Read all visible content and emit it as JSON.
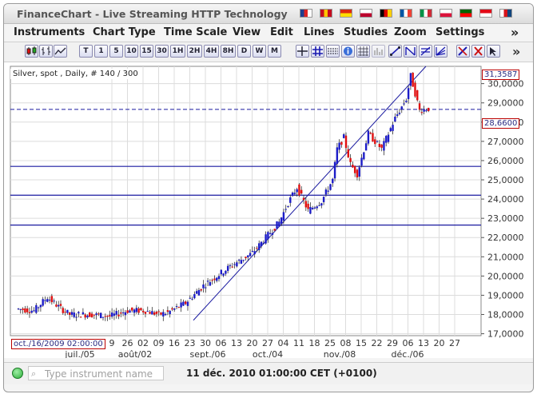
{
  "window": {
    "title": "FinanceChart - Live Streaming HTTP Technology"
  },
  "flags": [
    {
      "name": "uk-flag",
      "colors": [
        "#1f3d8f",
        "#d22",
        "#ffffff"
      ]
    },
    {
      "name": "spain-flag",
      "colors": [
        "#c60b1e",
        "#ffc400",
        "#c60b1e"
      ]
    },
    {
      "name": "china-flag",
      "colors": [
        "#de2910",
        "#ffde00"
      ]
    },
    {
      "name": "japan-flag",
      "colors": [
        "#ffffff",
        "#bc002d"
      ]
    },
    {
      "name": "germany-flag",
      "colors": [
        "#000000",
        "#dd0000",
        "#ffce00"
      ]
    },
    {
      "name": "france-flag",
      "colors": [
        "#0055a4",
        "#ffffff",
        "#ef4135"
      ]
    },
    {
      "name": "italy-flag",
      "colors": [
        "#009246",
        "#ffffff",
        "#ce2b37"
      ]
    },
    {
      "name": "poland-flag",
      "colors": [
        "#ffffff",
        "#dc143c"
      ]
    },
    {
      "name": "portugal-flag",
      "colors": [
        "#006600",
        "#ff0000"
      ]
    },
    {
      "name": "turkey-flag",
      "colors": [
        "#e30a17",
        "#ffffff"
      ]
    },
    {
      "name": "czech-flag",
      "colors": [
        "#ffffff",
        "#d7141a",
        "#11457e"
      ]
    }
  ],
  "menu": {
    "items": [
      "Instruments",
      "Chart Type",
      "Time Scale",
      "View",
      "Edit",
      "Lines",
      "Studies",
      "Zoom",
      "Settings"
    ],
    "more": "»"
  },
  "toolbar": {
    "periods": [
      "T",
      "1",
      "5",
      "10",
      "15",
      "30",
      "1H",
      "2H",
      "4H",
      "8H",
      "D",
      "W",
      "M"
    ],
    "more": "»"
  },
  "chart": {
    "label": "Silver, spot , Daily, # 140 / 300",
    "last_price": "31,3587",
    "cursor_price": "28,6600",
    "cursor_time": "oct./16/2009 02:00:00",
    "colors": {
      "up": "#1c1cc8",
      "down": "#e01010",
      "grid": "#dcdcdc",
      "line": "#1a1aa0"
    }
  },
  "chart_data": {
    "type": "candlestick",
    "y_ticks": [
      "30,0000",
      "29,0000",
      "28,0000",
      "27,0000",
      "26,0000",
      "25,0000",
      "24,0000",
      "23,0000",
      "22,0000",
      "21,0000",
      "20,0000",
      "19,0000",
      "18,0000",
      "17,0000"
    ],
    "ylim": [
      16.9,
      30.9
    ],
    "x_day_ticks": [
      "9",
      "26",
      "02",
      "09",
      "16",
      "23",
      "30",
      "06",
      "13",
      "20",
      "27",
      "04",
      "11",
      "18",
      "25",
      "08",
      "15",
      "22",
      "29",
      "06",
      "13",
      "20",
      "27"
    ],
    "x_month_ticks": [
      "juil./05",
      "août/02",
      "sept./06",
      "oct./04",
      "nov./08",
      "déc./06"
    ],
    "horizontal_lines": [
      25.7,
      24.2,
      22.65
    ],
    "dashed_line": 28.66,
    "trend_line": {
      "from": 17.7,
      "to": 30.9
    }
  },
  "status": {
    "search_placeholder": "Type instrument name",
    "datetime": "11 déc. 2010 01:00:00  CET (+0100)"
  }
}
